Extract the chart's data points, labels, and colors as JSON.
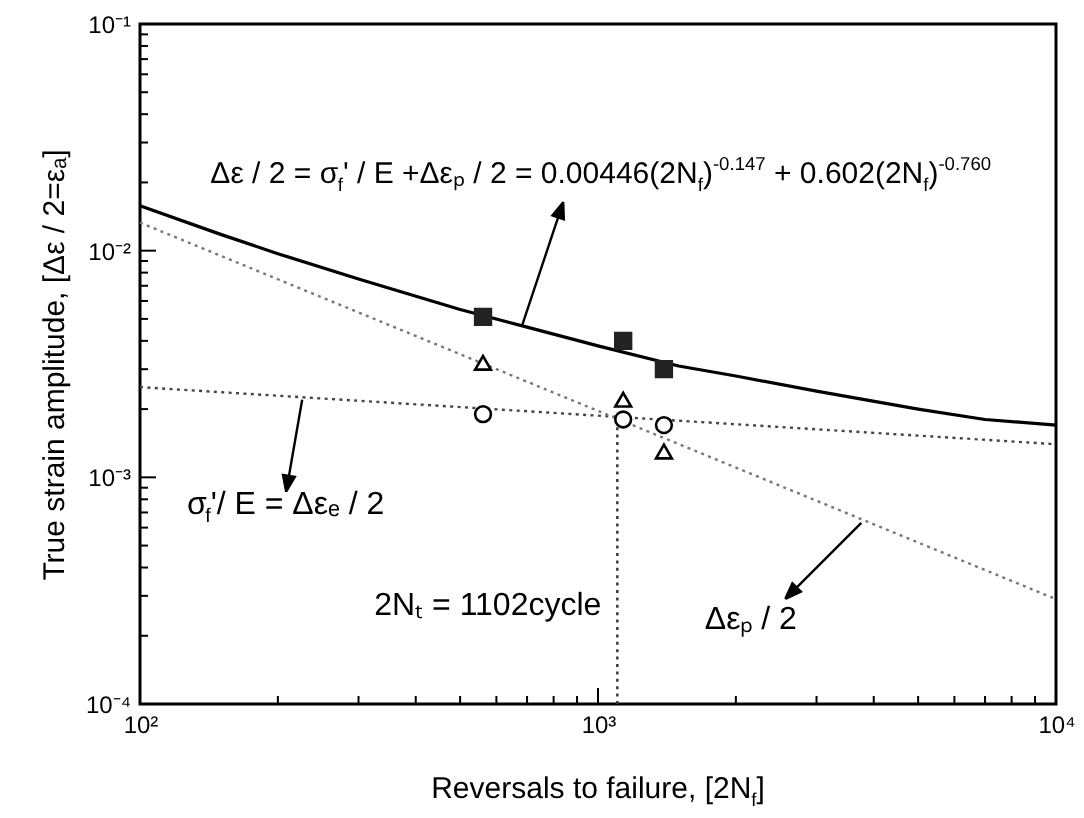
{
  "chart_data": {
    "type": "line",
    "xlabel": "Reversals to failure, [2N$_{f}$]",
    "ylabel": "True strain amplitude, [Δε / 2=εₐ]",
    "log": "xy",
    "xlim": [
      100,
      10000
    ],
    "ylim": [
      0.0001,
      0.1
    ],
    "xticks": [
      {
        "value": 100,
        "label": "10²"
      },
      {
        "value": 200,
        "label": null
      },
      {
        "value": 300,
        "label": null
      },
      {
        "value": 400,
        "label": null
      },
      {
        "value": 500,
        "label": null
      },
      {
        "value": 600,
        "label": null
      },
      {
        "value": 700,
        "label": null
      },
      {
        "value": 800,
        "label": null
      },
      {
        "value": 900,
        "label": null
      },
      {
        "value": 1000,
        "label": "10³"
      },
      {
        "value": 2000,
        "label": null
      },
      {
        "value": 3000,
        "label": null
      },
      {
        "value": 4000,
        "label": null
      },
      {
        "value": 5000,
        "label": null
      },
      {
        "value": 6000,
        "label": null
      },
      {
        "value": 7000,
        "label": null
      },
      {
        "value": 8000,
        "label": null
      },
      {
        "value": 9000,
        "label": null
      },
      {
        "value": 10000,
        "label": "10⁴"
      }
    ],
    "yticks": [
      {
        "value": 0.0001,
        "label": "10⁻⁴"
      },
      {
        "value": 0.0002,
        "label": null
      },
      {
        "value": 0.0003,
        "label": null
      },
      {
        "value": 0.0004,
        "label": null
      },
      {
        "value": 0.0005,
        "label": null
      },
      {
        "value": 0.0006,
        "label": null
      },
      {
        "value": 0.0007,
        "label": null
      },
      {
        "value": 0.0008,
        "label": null
      },
      {
        "value": 0.0009,
        "label": null
      },
      {
        "value": 0.001,
        "label": "10⁻³"
      },
      {
        "value": 0.002,
        "label": null
      },
      {
        "value": 0.003,
        "label": null
      },
      {
        "value": 0.004,
        "label": null
      },
      {
        "value": 0.005,
        "label": null
      },
      {
        "value": 0.006,
        "label": null
      },
      {
        "value": 0.007,
        "label": null
      },
      {
        "value": 0.008,
        "label": null
      },
      {
        "value": 0.009,
        "label": null
      },
      {
        "value": 0.01,
        "label": "10⁻²"
      },
      {
        "value": 0.02,
        "label": null
      },
      {
        "value": 0.03,
        "label": null
      },
      {
        "value": 0.04,
        "label": null
      },
      {
        "value": 0.05,
        "label": null
      },
      {
        "value": 0.06,
        "label": null
      },
      {
        "value": 0.07,
        "label": null
      },
      {
        "value": 0.08,
        "label": null
      },
      {
        "value": 0.09,
        "label": null
      },
      {
        "value": 0.1,
        "label": "10⁻¹"
      }
    ],
    "grid": false,
    "series": [
      {
        "type": "line",
        "color": "#000000",
        "line_style": "solid",
        "x": [
          100,
          150,
          200,
          300,
          500,
          700,
          1000,
          1500,
          2000,
          3000,
          5000,
          7000,
          10000
        ],
        "values": [
          0.0158,
          0.0118,
          0.0097,
          0.0075,
          0.0055,
          0.0046,
          0.0038,
          0.0031,
          0.0028,
          0.0024,
          0.002,
          0.0018,
          0.0017
        ]
      },
      {
        "type": "line",
        "color": "#444444",
        "line_style": "dotted",
        "x": [
          100,
          10000
        ],
        "values": [
          0.0025,
          0.0014
        ]
      },
      {
        "type": "line",
        "color": "#777777",
        "line_style": "dotted",
        "x": [
          100,
          10000
        ],
        "values": [
          0.0133,
          0.00029
        ]
      },
      {
        "type": "line",
        "color": "#333333",
        "line_style": "dotted",
        "x": [
          1102,
          1102
        ],
        "values": [
          0.0001,
          0.0018
        ]
      },
      {
        "type": "scatter",
        "color": "#222222",
        "marker": "square",
        "x": [
          561,
          1135,
          1393
        ],
        "values": [
          0.0051,
          0.004,
          0.003
        ]
      },
      {
        "type": "scatter",
        "color": "#000000",
        "marker": "triangle",
        "x": [
          561,
          1135,
          1393
        ],
        "values": [
          0.0032,
          0.0022,
          0.0013
        ]
      },
      {
        "type": "scatter",
        "color": "#000000",
        "marker": "circle",
        "x": [
          561,
          1135,
          1393
        ],
        "values": [
          0.0019,
          0.0018,
          0.0017
        ]
      }
    ],
    "annotations": [
      "Δε / 2 = σ$_{f}$' / E +Δεₚ / 2 = 0.00446(2N$_{f}$)$^{-0.147}$ + 0.602(2N$_{f}$)$^{-0.760}$",
      {
        "text": "σ$_{f}$'/ E = Δεₑ / 2",
        "x": 226,
        "y": 0.0022
      },
      {
        "text": "2Nₜ = 1102cycle",
        "x": 1102,
        "y": 0.00028
      },
      {
        "text": "Δεₚ / 2",
        "x": 3758,
        "y": 0.00063
      }
    ]
  }
}
